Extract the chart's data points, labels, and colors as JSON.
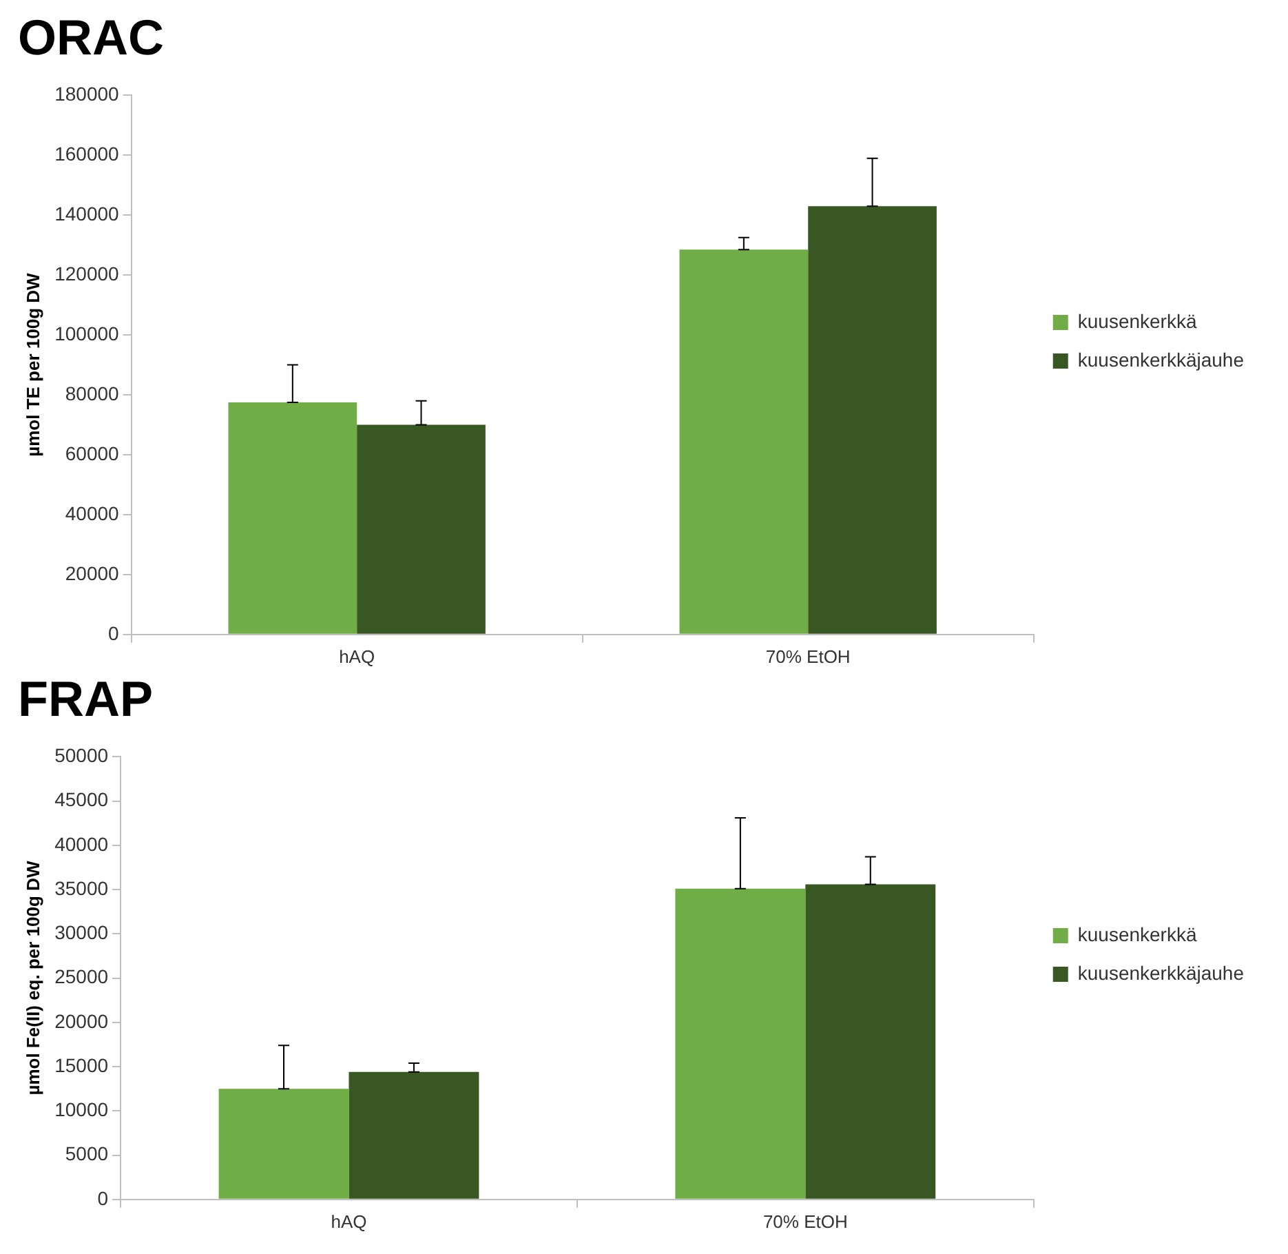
{
  "chart_data": [
    {
      "type": "bar",
      "title": "ORAC",
      "ylabel": "µmol TE per 100g DW",
      "categories": [
        "hAQ",
        "70% EtOH"
      ],
      "ylim": [
        0,
        180000
      ],
      "yticks": [
        0,
        20000,
        40000,
        60000,
        80000,
        100000,
        120000,
        140000,
        160000,
        180000
      ],
      "grid": false,
      "legend": "right",
      "series": [
        {
          "name": "kuusenkerkkä",
          "color": "#70ad47",
          "values": [
            77500,
            128500
          ],
          "errors": [
            [
              77500,
              90000
            ],
            [
              128500,
              132500
            ]
          ]
        },
        {
          "name": "kuusenkerkkäjauhe",
          "color": "#385723",
          "values": [
            70000,
            143000
          ],
          "errors": [
            [
              70000,
              78000
            ],
            [
              143000,
              159000
            ]
          ]
        }
      ]
    },
    {
      "type": "bar",
      "title": "FRAP",
      "ylabel": "µmol Fe(II) eq. per 100g DW",
      "categories": [
        "hAQ",
        "70% EtOH"
      ],
      "ylim": [
        0,
        50000
      ],
      "yticks": [
        0,
        5000,
        10000,
        15000,
        20000,
        25000,
        30000,
        35000,
        40000,
        45000,
        50000
      ],
      "grid": false,
      "legend": "right",
      "series": [
        {
          "name": "kuusenkerkkä",
          "color": "#70ad47",
          "values": [
            12500,
            35100
          ],
          "errors": [
            [
              12500,
              17400
            ],
            [
              35100,
              43100
            ]
          ]
        },
        {
          "name": "kuusenkerkkäjauhe",
          "color": "#385723",
          "values": [
            14400,
            35600
          ],
          "errors": [
            [
              14400,
              15400
            ],
            [
              35600,
              38700
            ]
          ]
        }
      ]
    }
  ]
}
